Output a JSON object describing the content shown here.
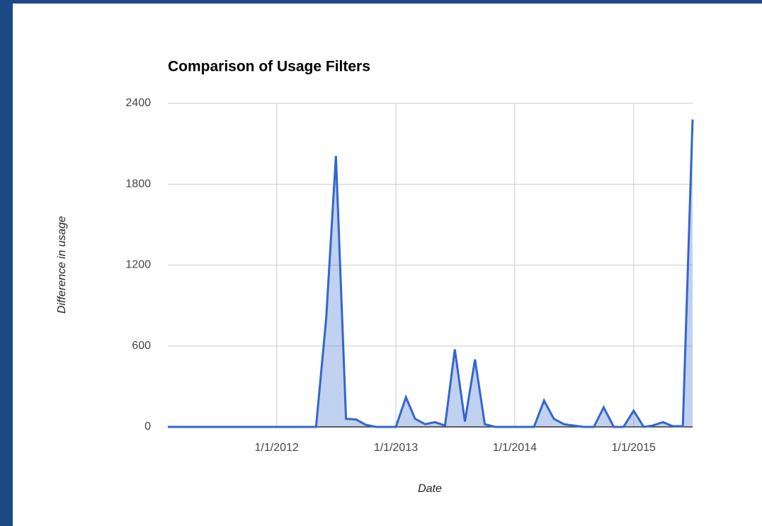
{
  "chart_data": {
    "type": "area",
    "title": "Comparison of Usage Filters",
    "x_label": "Date",
    "y_label": "Difference in usage",
    "x": [
      "2011-02-01",
      "2011-03-01",
      "2011-04-01",
      "2011-05-01",
      "2011-06-01",
      "2011-07-01",
      "2011-08-01",
      "2011-09-01",
      "2011-10-01",
      "2011-11-01",
      "2011-12-01",
      "2012-01-01",
      "2012-02-01",
      "2012-03-01",
      "2012-04-01",
      "2012-05-01",
      "2012-06-01",
      "2012-07-01",
      "2012-08-01",
      "2012-09-01",
      "2012-10-01",
      "2012-11-01",
      "2012-12-01",
      "2013-01-01",
      "2013-02-01",
      "2013-03-01",
      "2013-04-01",
      "2013-05-01",
      "2013-06-01",
      "2013-07-01",
      "2013-08-01",
      "2013-09-01",
      "2013-10-01",
      "2013-11-01",
      "2013-12-01",
      "2014-01-01",
      "2014-02-01",
      "2014-03-01",
      "2014-04-01",
      "2014-05-01",
      "2014-06-01",
      "2014-07-01",
      "2014-08-01",
      "2014-09-01",
      "2014-10-01",
      "2014-11-01",
      "2014-12-01",
      "2015-01-01",
      "2015-02-01",
      "2015-03-01",
      "2015-04-01",
      "2015-05-01",
      "2015-06-01",
      "2015-07-01"
    ],
    "values": [
      0,
      0,
      0,
      0,
      0,
      0,
      0,
      0,
      0,
      0,
      0,
      0,
      0,
      0,
      0,
      0,
      800,
      2010,
      60,
      55,
      15,
      0,
      0,
      0,
      220,
      60,
      20,
      35,
      10,
      575,
      40,
      500,
      20,
      0,
      0,
      0,
      0,
      0,
      195,
      60,
      20,
      10,
      0,
      0,
      145,
      0,
      0,
      120,
      0,
      10,
      35,
      5,
      5,
      2280
    ],
    "color": "#3366cc",
    "xlim": [
      "2011-02-01",
      "2015-07-01"
    ],
    "xticks": [
      {
        "value": "2012-01-01",
        "label": "1/1/2012"
      },
      {
        "value": "2013-01-01",
        "label": "1/1/2013"
      },
      {
        "value": "2014-01-01",
        "label": "1/1/2014"
      },
      {
        "value": "2015-01-01",
        "label": "1/1/2015"
      }
    ],
    "ylim": [
      0,
      2400
    ],
    "yticks": [
      0,
      600,
      1200,
      1800,
      2400
    ],
    "grid": true
  }
}
